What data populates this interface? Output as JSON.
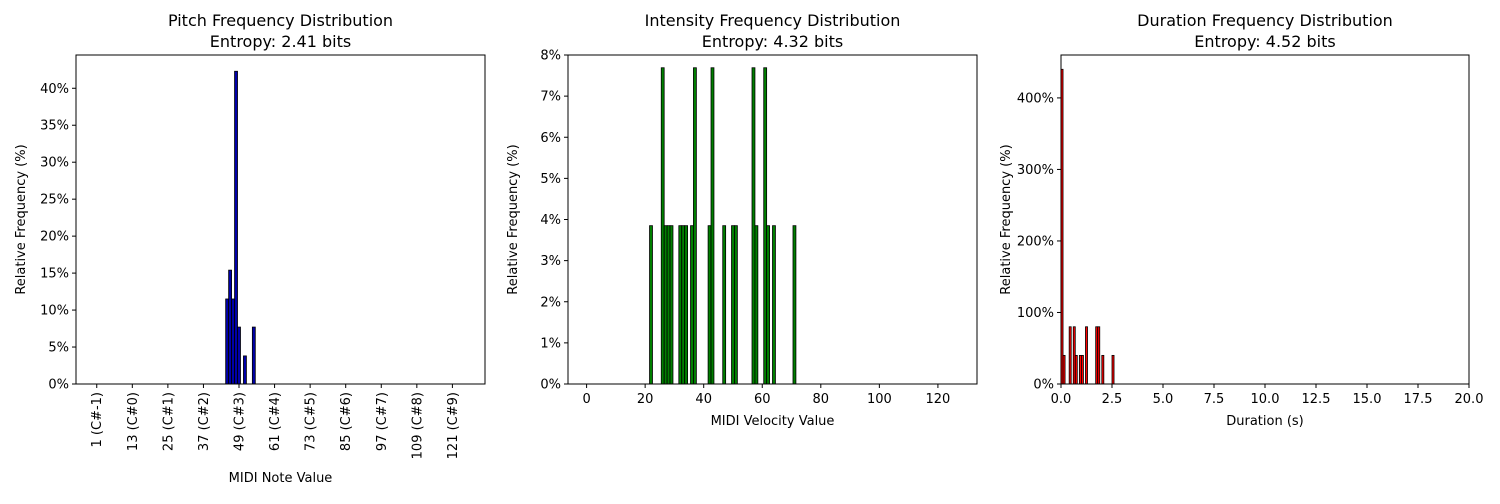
{
  "chart_data": [
    {
      "type": "bar",
      "title": "Pitch Frequency Distribution",
      "subtitle": "Entropy: 2.41 bits",
      "xlabel": "MIDI Note Value",
      "ylabel": "Relative Frequency (%)",
      "xlim": [
        -6,
        132
      ],
      "ylim": [
        0,
        44.5
      ],
      "xticks": [
        1,
        13,
        25,
        37,
        49,
        61,
        73,
        85,
        97,
        109,
        121
      ],
      "xtick_labels": [
        "1 (C#-1)",
        "13 (C#0)",
        "25 (C#1)",
        "37 (C#2)",
        "49 (C#3)",
        "61 (C#4)",
        "73 (C#5)",
        "85 (C#6)",
        "97 (C#7)",
        "109 (C#8)",
        "121 (C#9)"
      ],
      "yticks": [
        0,
        5,
        10,
        15,
        20,
        25,
        30,
        35,
        40
      ],
      "ytick_labels": [
        "0%",
        "5%",
        "10%",
        "15%",
        "20%",
        "25%",
        "30%",
        "35%",
        "40%"
      ],
      "bar_width": 1,
      "x": [
        45,
        46,
        47,
        48,
        49,
        51,
        54
      ],
      "values": [
        11.5,
        15.4,
        11.5,
        42.3,
        7.7,
        3.8,
        7.7
      ],
      "fill": "#0000a8",
      "edge": "#000000",
      "grid": false
    },
    {
      "type": "bar",
      "title": "Intensity Frequency Distribution",
      "subtitle": "Entropy: 4.32 bits",
      "xlabel": "MIDI Velocity Value",
      "ylabel": "Relative Frequency (%)",
      "xlim": [
        -6.35,
        133.35
      ],
      "ylim": [
        0,
        8.0
      ],
      "xticks": [
        0,
        20,
        40,
        60,
        80,
        100,
        120
      ],
      "xtick_labels": [
        "0",
        "20",
        "40",
        "60",
        "80",
        "100",
        "120"
      ],
      "yticks": [
        0,
        1,
        2,
        3,
        4,
        5,
        6,
        7,
        8
      ],
      "ytick_labels": [
        "0%",
        "1%",
        "2%",
        "3%",
        "4%",
        "5%",
        "6%",
        "7%",
        "8%"
      ],
      "bar_width": 1,
      "x": [
        22,
        26,
        27,
        28,
        29,
        32,
        33,
        34,
        36,
        37,
        42,
        43,
        47,
        50,
        51,
        57,
        58,
        61,
        62,
        64,
        71
      ],
      "values": [
        3.85,
        7.69,
        3.85,
        3.85,
        3.85,
        3.85,
        3.85,
        3.85,
        3.85,
        7.69,
        3.85,
        7.69,
        3.85,
        3.85,
        3.85,
        7.69,
        3.85,
        7.69,
        3.85,
        3.85,
        3.85
      ],
      "fill": "#007f00",
      "edge": "#000000",
      "grid": false
    },
    {
      "type": "bar",
      "title": "Duration Frequency Distribution",
      "subtitle": "Entropy: 4.52 bits",
      "xlabel": "Duration (s)",
      "ylabel": "Relative Frequency (%)",
      "xlim": [
        0,
        20
      ],
      "ylim": [
        0,
        460
      ],
      "xticks": [
        0,
        2.5,
        5,
        7.5,
        10,
        12.5,
        15,
        17.5,
        20
      ],
      "xtick_labels": [
        "0.0",
        "2.5",
        "5.0",
        "7.5",
        "10.0",
        "12.5",
        "15.0",
        "17.5",
        "20.0"
      ],
      "yticks": [
        0,
        100,
        200,
        300,
        400
      ],
      "ytick_labels": [
        "0%",
        "100%",
        "200%",
        "300%",
        "400%"
      ],
      "bar_width": 0.1,
      "x": [
        0.05,
        0.15,
        0.45,
        0.65,
        0.75,
        0.95,
        1.05,
        1.25,
        1.75,
        1.85,
        2.05,
        2.55
      ],
      "values": [
        440,
        40,
        80,
        80,
        40,
        40,
        40,
        80,
        80,
        80,
        40,
        40
      ],
      "fill": "#ff0000",
      "edge": "#000000",
      "grid": false
    }
  ]
}
